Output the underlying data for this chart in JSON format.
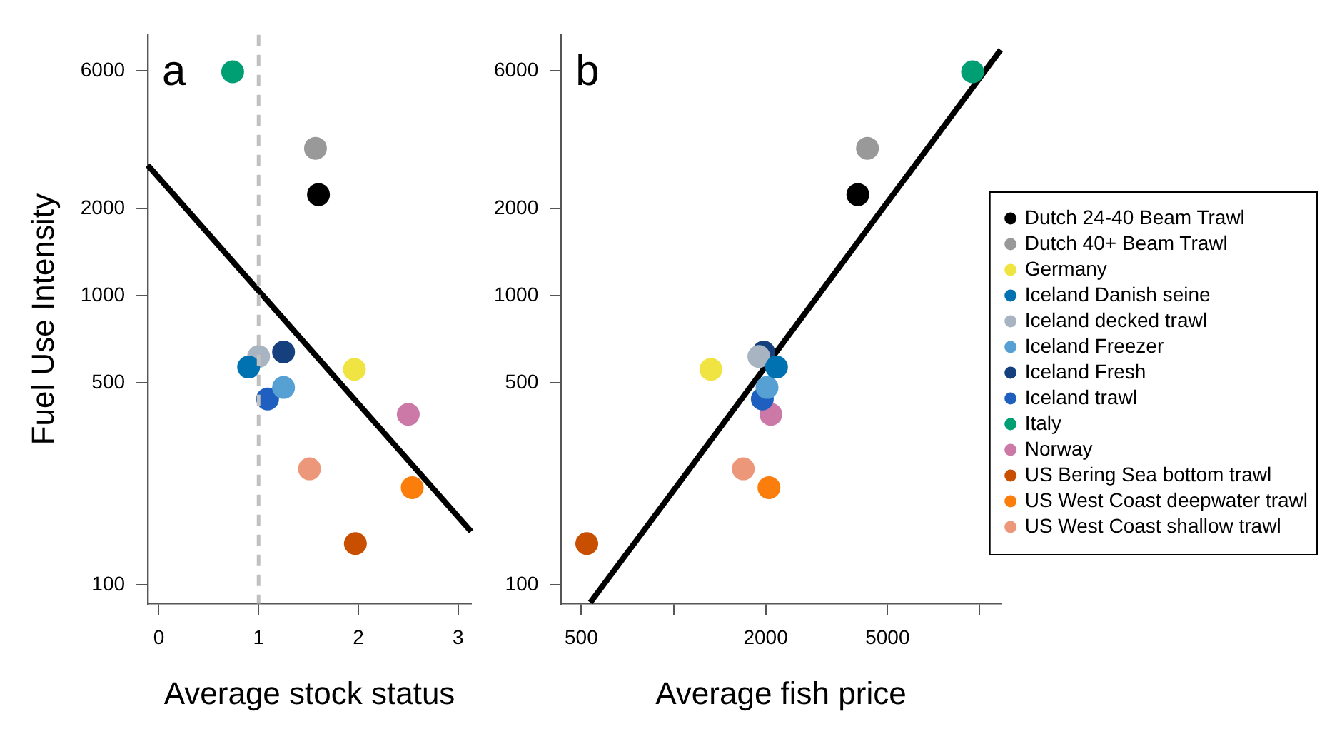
{
  "chart_data": [
    {
      "type": "scatter",
      "xlabel": "Average stock status",
      "ylabel": "Fuel Use Intensity",
      "annotations": [
        "a"
      ],
      "log": "y",
      "grid": false,
      "legend": false,
      "marker": "circle",
      "xlim": [
        -0.11,
        3.13
      ],
      "xticks": [
        0,
        1,
        2,
        3
      ],
      "ylim": [
        86,
        8000
      ],
      "yticks": [
        100,
        500,
        1000,
        2000,
        6000
      ],
      "ref_lines": [
        {
          "axis": "x",
          "value": 1,
          "color": "#c0c0c0",
          "line_style": "dashed"
        }
      ],
      "series": [
        {
          "color": "#000000",
          "x": [
            1.6
          ],
          "values": [
            2240
          ]
        },
        {
          "color": "#999999",
          "x": [
            1.57
          ],
          "values": [
            3240
          ]
        },
        {
          "color": "#f0e442",
          "x": [
            1.96
          ],
          "values": [
            557
          ]
        },
        {
          "color": "#0072b2",
          "x": [
            0.9
          ],
          "values": [
            567
          ]
        },
        {
          "color": "#a9b4c2",
          "x": [
            1.0
          ],
          "values": [
            617
          ]
        },
        {
          "color": "#56a0d3",
          "x": [
            1.25
          ],
          "values": [
            482
          ]
        },
        {
          "color": "#163f7e",
          "x": [
            1.25
          ],
          "values": [
            639
          ]
        },
        {
          "color": "#1f5fbf",
          "x": [
            1.09
          ],
          "values": [
            440
          ]
        },
        {
          "color": "#009e73",
          "x": [
            0.74
          ],
          "values": [
            5960
          ]
        },
        {
          "color": "#cc79a7",
          "x": [
            2.5
          ],
          "values": [
            389
          ]
        },
        {
          "color": "#c84e00",
          "x": [
            1.97
          ],
          "values": [
            139
          ]
        },
        {
          "color": "#fb7d0c",
          "x": [
            2.54
          ],
          "values": [
            217
          ]
        },
        {
          "color": "#ec977a",
          "x": [
            1.51
          ],
          "values": [
            252
          ]
        },
        {
          "type": "line",
          "marker": "none",
          "color": "#000000",
          "x": [
            -0.11,
            3.13
          ],
          "values": [
            2830,
            153
          ]
        }
      ]
    },
    {
      "type": "scatter",
      "xlabel": "Average fish price",
      "annotations": [
        "b"
      ],
      "log": "xy",
      "grid": false,
      "legend": "right",
      "marker": "circle",
      "xlim": [
        430,
        11700
      ],
      "xticks": [
        500,
        {
          "value": 1000,
          "label": null
        },
        2000,
        5000,
        {
          "value": 10000,
          "label": null
        }
      ],
      "ylim": [
        86,
        8000
      ],
      "yticks": [
        100,
        500,
        1000,
        2000,
        6000
      ],
      "series": [
        {
          "name": "Dutch 24-40 Beam Trawl",
          "color": "#000000",
          "x": [
            4000
          ],
          "values": [
            2240
          ]
        },
        {
          "name": "Dutch 40+ Beam Trawl",
          "color": "#999999",
          "x": [
            4300
          ],
          "values": [
            3240
          ]
        },
        {
          "name": "Germany",
          "color": "#f0e442",
          "x": [
            1325
          ],
          "values": [
            557
          ]
        },
        {
          "name": "Iceland Danish seine",
          "color": "#0072b2",
          "x": [
            2170
          ],
          "values": [
            567
          ]
        },
        {
          "name": "Iceland decked trawl",
          "color": "#a9b4c2",
          "x": [
            1900
          ],
          "values": [
            617
          ]
        },
        {
          "name": "Iceland Freezer",
          "color": "#56a0d3",
          "x": [
            2020
          ],
          "values": [
            482
          ]
        },
        {
          "name": "Iceland Fresh",
          "color": "#163f7e",
          "x": [
            1970
          ],
          "values": [
            639
          ]
        },
        {
          "name": "Iceland trawl",
          "color": "#1f5fbf",
          "x": [
            1950
          ],
          "values": [
            440
          ]
        },
        {
          "name": "Italy",
          "color": "#009e73",
          "x": [
            9480
          ],
          "values": [
            5960
          ]
        },
        {
          "name": "Norway",
          "color": "#cc79a7",
          "x": [
            2080
          ],
          "values": [
            389
          ]
        },
        {
          "name": "US Bering Sea bottom trawl",
          "color": "#c84e00",
          "x": [
            521
          ],
          "values": [
            139
          ]
        },
        {
          "name": "US West Coast deepwater trawl",
          "color": "#fb7d0c",
          "x": [
            2050
          ],
          "values": [
            217
          ]
        },
        {
          "name": "US West Coast shallow trawl",
          "color": "#ec977a",
          "x": [
            1690
          ],
          "values": [
            252
          ]
        },
        {
          "type": "line",
          "marker": "none",
          "color": "#000000",
          "x": [
            535,
            11700
          ],
          "values": [
            86.8,
            7100
          ]
        }
      ]
    }
  ]
}
